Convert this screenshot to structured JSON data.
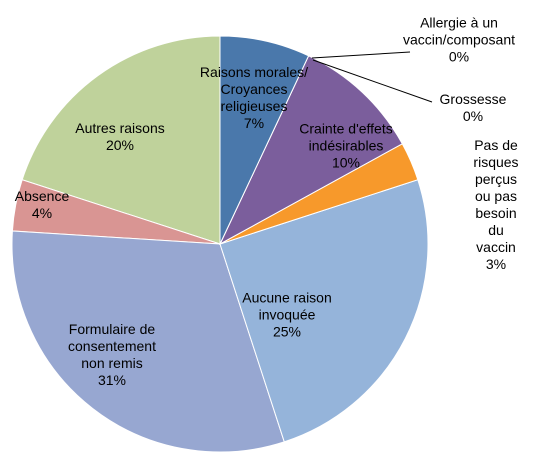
{
  "chart_data": {
    "type": "pie",
    "categories": [
      "Raisons morales/\nCroyances\nreligieuses",
      "Allergie à un\nvaccin/composant",
      "Grossesse",
      "Crainte d'effets\nindésirables",
      "Pas de risques\nperçus ou pas\nbesoin du vaccin",
      "Aucune raison\ninvoquée",
      "Formulaire de\nconsentement\nnon remis",
      "Absence",
      "Autres raisons"
    ],
    "values": [
      7,
      0,
      0,
      10,
      3,
      25,
      31,
      4,
      20
    ],
    "value_labels": [
      "7%",
      "0%",
      "0%",
      "10%",
      "3%",
      "25%",
      "31%",
      "4%",
      "20%"
    ],
    "colors": [
      "#4a78ab",
      "#3a3a3a",
      "#3a3a3a",
      "#7b5e9c",
      "#f7992b",
      "#95b4da",
      "#97a7d1",
      "#d99593",
      "#bfd29b"
    ]
  }
}
